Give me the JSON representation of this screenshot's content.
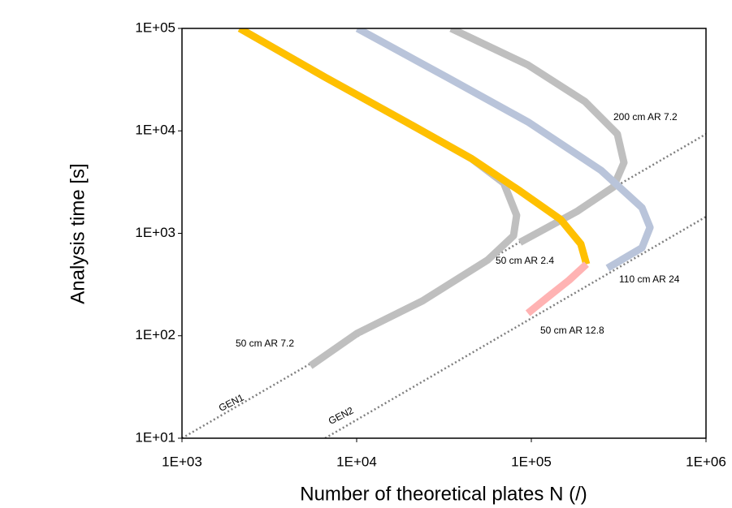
{
  "chart_data": {
    "type": "line",
    "x_label": "Number of theoretical plates N (/)",
    "y_label": "Analysis time [s]",
    "xscale": "log",
    "yscale": "log",
    "xlim": [
      1000,
      1000000
    ],
    "ylim": [
      10,
      100000
    ],
    "xticks": [
      {
        "value": 1000,
        "label": "1E+03"
      },
      {
        "value": 10000,
        "label": "1E+04"
      },
      {
        "value": 100000,
        "label": "1E+05"
      },
      {
        "value": 1000000,
        "label": "1E+06"
      }
    ],
    "yticks": [
      {
        "value": 10,
        "label": "1E+01"
      },
      {
        "value": 100,
        "label": "1E+02"
      },
      {
        "value": 1000,
        "label": "1E+03"
      },
      {
        "value": 10000,
        "label": "1E+04"
      },
      {
        "value": 100000,
        "label": "1E+05"
      }
    ],
    "series": [
      {
        "name": "GEN1",
        "color": "#7f7f7f",
        "style": "dotted",
        "x": [
          1000,
          1000000
        ],
        "values": [
          10,
          9300
        ]
      },
      {
        "name": "GEN2",
        "color": "#7f7f7f",
        "style": "dotted",
        "x": [
          6600,
          1000000
        ],
        "values": [
          10,
          1450
        ]
      },
      {
        "name": "50 cm AR 7.2",
        "color": "#bfbfbf",
        "style": "solid",
        "x": [
          2140,
          6590,
          19200,
          45300,
          69500,
          82400,
          79100,
          56100,
          23800,
          10100,
          5430
        ],
        "values": [
          100000,
          33400,
          12200,
          5370,
          3100,
          1500,
          946,
          547,
          219,
          106,
          50.8
        ]
      },
      {
        "name": "200 cm AR 7.2",
        "color": "#bfbfbf",
        "style": "solid",
        "x": [
          34700,
          95700,
          203000,
          311000,
          339000,
          295000,
          182000,
          86100
        ],
        "values": [
          100000,
          43900,
          19300,
          9310,
          4900,
          2830,
          1630,
          815
        ]
      },
      {
        "name": "110 cm AR 24",
        "color": "#b9c4da",
        "style": "solid",
        "x": [
          10100,
          32800,
          95700,
          251000,
          430000,
          478000,
          430000,
          273000
        ],
        "values": [
          100000,
          33400,
          12200,
          4110,
          1780,
          1140,
          722,
          457
        ]
      },
      {
        "name": "50 cm AR 2.4",
        "color": "#ffc000",
        "style": "solid",
        "x": [
          2140,
          6590,
          19200,
          45300,
          86100,
          147000,
          192000,
          207000
        ],
        "values": [
          100000,
          33400,
          12200,
          5370,
          2590,
          1365,
          788,
          499
        ]
      },
      {
        "name": "50 cm AR 12.8",
        "color": "#ffb3b3",
        "style": "solid",
        "x": [
          207000,
          164000,
          125000,
          95500
        ],
        "values": [
          499,
          347,
          240,
          166
        ]
      }
    ]
  }
}
